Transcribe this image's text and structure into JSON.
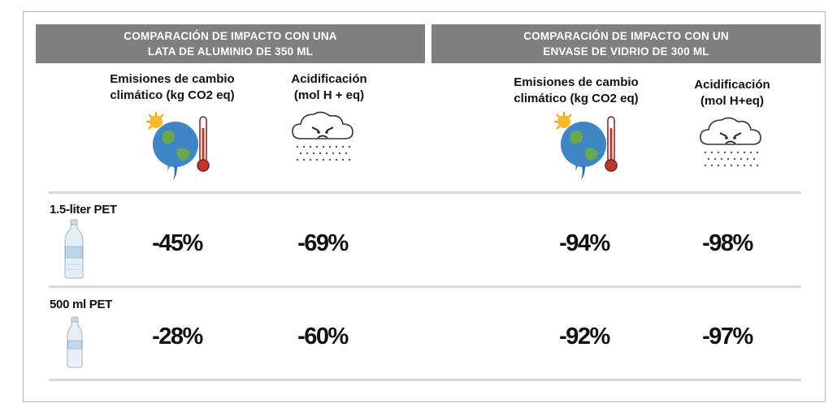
{
  "left_group": {
    "header_line1": "COMPARACIÓN DE IMPACTO CON UNA",
    "header_line2": "LATA DE ALUMINIO DE 350 ML",
    "climate_line1": "Emisiones de cambio",
    "climate_line2": "climático (kg CO2 eq)",
    "acid_line1": "Acidificación",
    "acid_line2": "(mol H + eq)"
  },
  "right_group": {
    "header_line1": "COMPARACIÓN DE IMPACTO CON UN",
    "header_line2": "ENVASE DE VIDRIO DE 300 ML",
    "climate_line1": "Emisiones de cambio",
    "climate_line2": "climático (kg CO2 eq)",
    "acid_line1": "Acidificación",
    "acid_line2": "(mol H+eq)"
  },
  "icons": {
    "climate": "globe-thermometer-icon",
    "acid": "acid-rain-cloud-icon",
    "bottle": "water-bottle-icon"
  },
  "rows": [
    {
      "label": "1.5-liter PET",
      "can_climate": "-45%",
      "can_acid": "-69%",
      "glass_climate": "-94%",
      "glass_acid": "-98%"
    },
    {
      "label": "500 ml PET",
      "can_climate": "-28%",
      "can_acid": "-60%",
      "glass_climate": "-92%",
      "glass_acid": "-97%"
    }
  ],
  "colors": {
    "banner": "#7f7f7f",
    "divider": "#d9d9d9",
    "frame": "#b3b3b3"
  }
}
